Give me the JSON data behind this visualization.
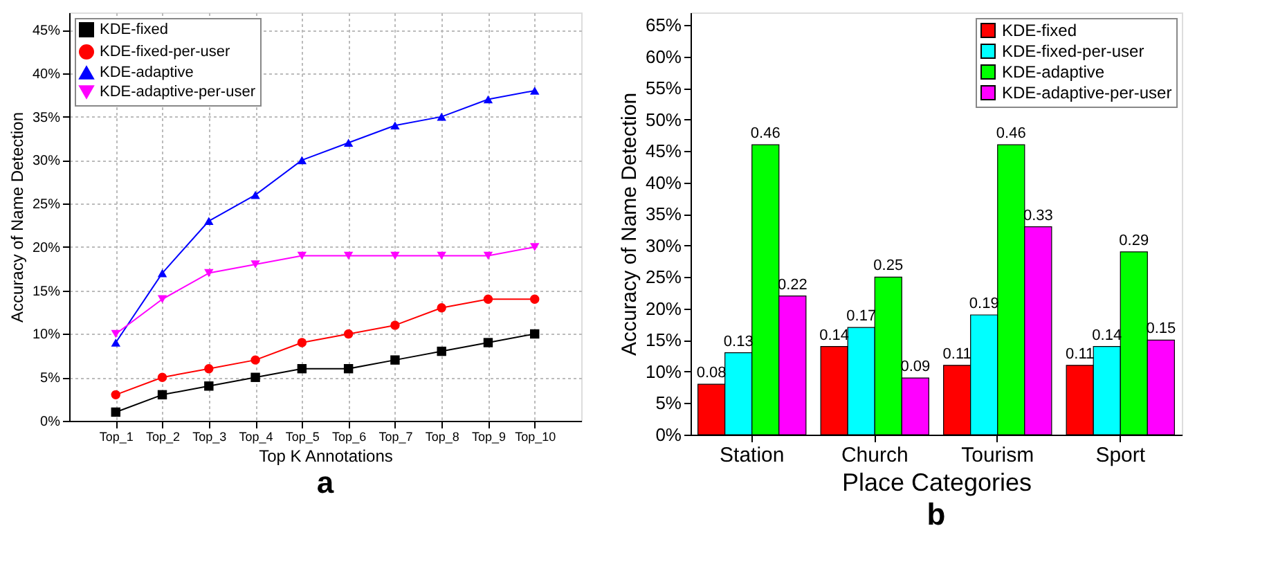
{
  "chart_data": [
    {
      "type": "line",
      "xlabel": "Top K Annotations",
      "ylabel": "Accuracy of Name Detection",
      "annotations": [
        "a"
      ],
      "categories": [
        "Top_1",
        "Top_2",
        "Top_3",
        "Top_4",
        "Top_5",
        "Top_6",
        "Top_7",
        "Top_8",
        "Top_9",
        "Top_10"
      ],
      "series": [
        {
          "name": "KDE-fixed",
          "color": "#000000",
          "marker": "square",
          "values": [
            0.01,
            0.03,
            0.04,
            0.05,
            0.06,
            0.06,
            0.07,
            0.08,
            0.09,
            0.1
          ]
        },
        {
          "name": "KDE-fixed-per-user",
          "color": "#ff0000",
          "marker": "circle",
          "values": [
            0.03,
            0.05,
            0.06,
            0.07,
            0.09,
            0.1,
            0.11,
            0.13,
            0.14,
            0.14
          ]
        },
        {
          "name": "KDE-adaptive",
          "color": "#0000ff",
          "marker": "triangle",
          "values": [
            0.09,
            0.17,
            0.23,
            0.26,
            0.3,
            0.32,
            0.34,
            0.35,
            0.37,
            0.38
          ]
        },
        {
          "name": "KDE-adaptive-per-user",
          "color": "#ff00ff",
          "marker": "triangle-down",
          "values": [
            0.1,
            0.14,
            0.17,
            0.18,
            0.19,
            0.19,
            0.19,
            0.19,
            0.19,
            0.2
          ]
        }
      ],
      "ylim": [
        0,
        0.47
      ],
      "yticks": [
        {
          "value": 0,
          "label": "0%"
        },
        {
          "value": 0.05,
          "label": "5%"
        },
        {
          "value": 0.1,
          "label": "10%"
        },
        {
          "value": 0.15,
          "label": "15%"
        },
        {
          "value": 0.2,
          "label": "20%"
        },
        {
          "value": 0.25,
          "label": "25%"
        },
        {
          "value": 0.3,
          "label": "30%"
        },
        {
          "value": 0.35,
          "label": "35%"
        },
        {
          "value": 0.4,
          "label": "40%"
        },
        {
          "value": 0.45,
          "label": "45%"
        }
      ],
      "grid": true,
      "legend": "top left",
      "line_style": "solid"
    },
    {
      "type": "bar",
      "xlabel": "Place Categories",
      "ylabel": "Accuracy of Name Detection",
      "annotations": [
        "b"
      ],
      "categories": [
        "Station",
        "Church",
        "Tourism",
        "Sport"
      ],
      "series": [
        {
          "name": "KDE-fixed",
          "color": "#ff0000",
          "values": [
            0.08,
            0.14,
            0.11,
            0.11
          ]
        },
        {
          "name": "KDE-fixed-per-user",
          "color": "#00ffff",
          "values": [
            0.13,
            0.17,
            0.19,
            0.14
          ]
        },
        {
          "name": "KDE-adaptive",
          "color": "#00ff00",
          "values": [
            0.46,
            0.25,
            0.46,
            0.29
          ]
        },
        {
          "name": "KDE-adaptive-per-user",
          "color": "#ff00ff",
          "values": [
            0.22,
            0.09,
            0.33,
            0.15
          ]
        }
      ],
      "ylim": [
        0,
        0.67
      ],
      "yticks": [
        {
          "value": 0,
          "label": "0%"
        },
        {
          "value": 0.05,
          "label": "5%"
        },
        {
          "value": 0.1,
          "label": "10%"
        },
        {
          "value": 0.15,
          "label": "15%"
        },
        {
          "value": 0.2,
          "label": "20%"
        },
        {
          "value": 0.25,
          "label": "25%"
        },
        {
          "value": 0.3,
          "label": "30%"
        },
        {
          "value": 0.35,
          "label": "35%"
        },
        {
          "value": 0.4,
          "label": "40%"
        },
        {
          "value": 0.45,
          "label": "45%"
        },
        {
          "value": 0.5,
          "label": "50%"
        },
        {
          "value": 0.55,
          "label": "55%"
        },
        {
          "value": 0.6,
          "label": "60%"
        },
        {
          "value": 0.65,
          "label": "65%"
        }
      ],
      "grid": false,
      "legend": "top right",
      "data_labels": true
    }
  ]
}
